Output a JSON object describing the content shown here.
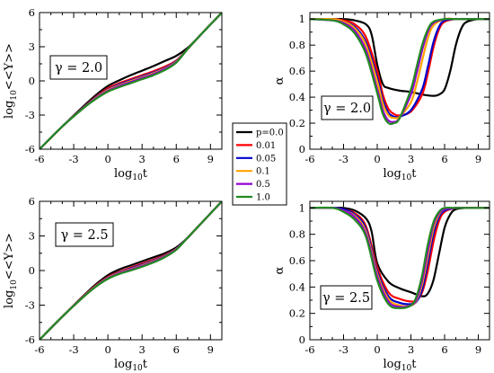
{
  "chart_data": [
    {
      "panel": "top-left",
      "type": "line",
      "xlabel": "log10t",
      "ylabel": "log10<<Y>>",
      "xlim": [
        -6,
        10
      ],
      "ylim": [
        -6,
        6
      ],
      "xticks": [
        "-6",
        "-3",
        "0",
        "3",
        "6",
        "9"
      ],
      "yticks": [
        "-6",
        "-3",
        "0",
        "3",
        "6"
      ],
      "annotation": "γ = 2.0",
      "series": [
        {
          "name": "p=0.0",
          "color": "#000000",
          "x": [
            -6,
            -4,
            -2,
            -1,
            0,
            1,
            2,
            3,
            4,
            5,
            6,
            7,
            8,
            9,
            10
          ],
          "y": [
            -6,
            -4,
            -2.1,
            -1.2,
            -0.45,
            0.05,
            0.5,
            0.9,
            1.3,
            1.75,
            2.2,
            2.9,
            3.9,
            4.95,
            6
          ]
        },
        {
          "name": "0.01",
          "color": "#ff0000",
          "x": [
            -6,
            -4,
            -2,
            -1,
            0,
            1,
            2,
            3,
            4,
            5,
            6,
            7,
            8,
            9,
            10
          ],
          "y": [
            -6,
            -4,
            -2.2,
            -1.35,
            -0.65,
            -0.2,
            0.15,
            0.5,
            0.85,
            1.25,
            1.8,
            2.8,
            3.9,
            4.95,
            6
          ]
        },
        {
          "name": "0.05",
          "color": "#0000cc",
          "x": [
            -6,
            -4,
            -2,
            -1,
            0,
            1,
            2,
            3,
            4,
            5,
            6,
            7,
            8,
            9,
            10
          ],
          "y": [
            -6,
            -4,
            -2.22,
            -1.4,
            -0.75,
            -0.3,
            0.05,
            0.4,
            0.75,
            1.15,
            1.75,
            2.8,
            3.9,
            4.95,
            6
          ]
        },
        {
          "name": "0.1",
          "color": "#ffa500",
          "x": [
            -6,
            -4,
            -2,
            -1,
            0,
            1,
            2,
            3,
            4,
            5,
            6,
            7,
            8,
            9,
            10
          ],
          "y": [
            -6,
            -4,
            -2.24,
            -1.45,
            -0.8,
            -0.38,
            -0.02,
            0.32,
            0.68,
            1.1,
            1.7,
            2.8,
            3.9,
            4.95,
            6
          ]
        },
        {
          "name": "0.5",
          "color": "#9400d3",
          "x": [
            -6,
            -4,
            -2,
            -1,
            0,
            1,
            2,
            3,
            4,
            5,
            6,
            7,
            8,
            9,
            10
          ],
          "y": [
            -6,
            -4,
            -2.26,
            -1.5,
            -0.88,
            -0.45,
            -0.1,
            0.25,
            0.6,
            1.05,
            1.65,
            2.8,
            3.9,
            4.95,
            6
          ]
        },
        {
          "name": "1.0",
          "color": "#228b22",
          "x": [
            -6,
            -4,
            -2,
            -1,
            0,
            1,
            2,
            3,
            4,
            5,
            6,
            7,
            8,
            9,
            10
          ],
          "y": [
            -6,
            -4,
            -2.28,
            -1.55,
            -0.95,
            -0.55,
            -0.2,
            0.15,
            0.5,
            0.95,
            1.6,
            2.8,
            3.9,
            4.95,
            6
          ]
        }
      ]
    },
    {
      "panel": "top-right",
      "type": "line",
      "xlabel": "log10t",
      "ylabel": "α",
      "xlim": [
        -6,
        10
      ],
      "ylim": [
        0,
        1.05
      ],
      "xticks": [
        "-6",
        "-3",
        "0",
        "3",
        "6",
        "9"
      ],
      "yticks": [
        "0",
        "0.2",
        "0.4",
        "0.6",
        "0.8",
        "1"
      ],
      "annotation": "γ = 2.0",
      "series": [
        {
          "name": "p=0.0",
          "color": "#000000",
          "x": [
            -6,
            -4,
            -3,
            -2,
            -1,
            -0.5,
            0,
            0.5,
            1,
            2,
            3,
            4,
            5,
            5.5,
            6,
            6.5,
            7,
            7.5,
            8,
            9,
            10
          ],
          "y": [
            1,
            1,
            1,
            0.99,
            0.96,
            0.88,
            0.65,
            0.5,
            0.47,
            0.45,
            0.44,
            0.42,
            0.41,
            0.42,
            0.46,
            0.6,
            0.8,
            0.93,
            0.98,
            1,
            1
          ]
        },
        {
          "name": "0.01",
          "color": "#ff0000",
          "x": [
            -6,
            -4,
            -3,
            -2,
            -1,
            0,
            0.5,
            1,
            1.5,
            2,
            3,
            4,
            4.5,
            5,
            5.5,
            6,
            7,
            8,
            9,
            10
          ],
          "y": [
            1,
            1,
            0.99,
            0.96,
            0.86,
            0.6,
            0.42,
            0.31,
            0.27,
            0.26,
            0.29,
            0.42,
            0.58,
            0.78,
            0.92,
            0.98,
            1,
            1,
            1,
            1
          ]
        },
        {
          "name": "0.05",
          "color": "#0000cc",
          "x": [
            -6,
            -4,
            -3,
            -2,
            -1,
            0,
            0.5,
            1,
            1.5,
            2,
            3,
            4,
            4.5,
            5,
            5.5,
            6,
            7,
            8,
            9,
            10
          ],
          "y": [
            1,
            1,
            0.98,
            0.94,
            0.82,
            0.55,
            0.38,
            0.28,
            0.25,
            0.25,
            0.3,
            0.46,
            0.63,
            0.82,
            0.94,
            0.99,
            1,
            1,
            1,
            1
          ]
        },
        {
          "name": "0.1",
          "color": "#ffa500",
          "x": [
            -6,
            -4,
            -3,
            -2,
            -1,
            0,
            0.5,
            1,
            1.5,
            2,
            3,
            3.5,
            4,
            4.5,
            5,
            6,
            7,
            8,
            9,
            10
          ],
          "y": [
            1,
            1,
            0.98,
            0.93,
            0.8,
            0.52,
            0.35,
            0.26,
            0.24,
            0.25,
            0.36,
            0.5,
            0.68,
            0.85,
            0.95,
            1,
            1,
            1,
            1,
            1
          ]
        },
        {
          "name": "0.5",
          "color": "#9400d3",
          "x": [
            -6,
            -4,
            -3,
            -2,
            -1,
            0,
            0.5,
            1,
            1.5,
            2,
            3,
            3.5,
            4,
            4.5,
            5,
            6,
            7,
            8,
            9,
            10
          ],
          "y": [
            1,
            0.99,
            0.97,
            0.91,
            0.76,
            0.46,
            0.3,
            0.22,
            0.21,
            0.24,
            0.42,
            0.58,
            0.76,
            0.9,
            0.97,
            1,
            1,
            1,
            1,
            1
          ]
        },
        {
          "name": "1.0",
          "color": "#228b22",
          "x": [
            -6,
            -4,
            -3,
            -2,
            -1,
            0,
            0.5,
            1,
            1.5,
            2,
            3,
            3.5,
            4,
            4.5,
            5,
            6,
            7,
            8,
            9,
            10
          ],
          "y": [
            1,
            0.99,
            0.96,
            0.89,
            0.73,
            0.43,
            0.27,
            0.2,
            0.2,
            0.24,
            0.46,
            0.63,
            0.8,
            0.92,
            0.98,
            1,
            1,
            1,
            1,
            1
          ]
        }
      ]
    },
    {
      "panel": "bottom-left",
      "type": "line",
      "xlabel": "log10t",
      "ylabel": "log10<<Y>>",
      "xlim": [
        -6,
        10
      ],
      "ylim": [
        -6,
        6
      ],
      "xticks": [
        "-6",
        "-3",
        "0",
        "3",
        "6",
        "9"
      ],
      "yticks": [
        "-6",
        "-3",
        "0",
        "3",
        "6"
      ],
      "annotation": "γ = 2.5",
      "series": [
        {
          "name": "p=0.0",
          "color": "#000000",
          "x": [
            -6,
            -4,
            -2,
            -1,
            0,
            1,
            2,
            3,
            4,
            5,
            6,
            7,
            8,
            9,
            10
          ],
          "y": [
            -6,
            -4,
            -2.05,
            -1.15,
            -0.4,
            0.1,
            0.45,
            0.8,
            1.15,
            1.5,
            2.0,
            2.85,
            3.9,
            4.95,
            6
          ]
        },
        {
          "name": "0.01",
          "color": "#ff0000",
          "x": [
            -6,
            -4,
            -2,
            -1,
            0,
            1,
            2,
            3,
            4,
            5,
            6,
            7,
            8,
            9,
            10
          ],
          "y": [
            -6,
            -4,
            -2.1,
            -1.25,
            -0.55,
            -0.1,
            0.25,
            0.6,
            0.95,
            1.35,
            1.9,
            2.85,
            3.9,
            4.95,
            6
          ]
        },
        {
          "name": "0.05",
          "color": "#0000cc",
          "x": [
            -6,
            -4,
            -2,
            -1,
            0,
            1,
            2,
            3,
            4,
            5,
            6,
            7,
            8,
            9,
            10
          ],
          "y": [
            -6,
            -4,
            -2.12,
            -1.28,
            -0.6,
            -0.15,
            0.18,
            0.52,
            0.88,
            1.3,
            1.88,
            2.85,
            3.9,
            4.95,
            6
          ]
        },
        {
          "name": "0.1",
          "color": "#ffa500",
          "x": [
            -6,
            -4,
            -2,
            -1,
            0,
            1,
            2,
            3,
            4,
            5,
            6,
            7,
            8,
            9,
            10
          ],
          "y": [
            -6,
            -4,
            -2.13,
            -1.3,
            -0.63,
            -0.2,
            0.12,
            0.46,
            0.83,
            1.26,
            1.86,
            2.85,
            3.9,
            4.95,
            6
          ]
        },
        {
          "name": "0.5",
          "color": "#9400d3",
          "x": [
            -6,
            -4,
            -2,
            -1,
            0,
            1,
            2,
            3,
            4,
            5,
            6,
            7,
            8,
            9,
            10
          ],
          "y": [
            -6,
            -4,
            -2.15,
            -1.33,
            -0.67,
            -0.25,
            0.07,
            0.4,
            0.77,
            1.22,
            1.83,
            2.85,
            3.9,
            4.95,
            6
          ]
        },
        {
          "name": "1.0",
          "color": "#228b22",
          "x": [
            -6,
            -4,
            -2,
            -1,
            0,
            1,
            2,
            3,
            4,
            5,
            6,
            7,
            8,
            9,
            10
          ],
          "y": [
            -6,
            -4,
            -2.17,
            -1.36,
            -0.72,
            -0.3,
            0.0,
            0.33,
            0.7,
            1.16,
            1.8,
            2.85,
            3.9,
            4.95,
            6
          ]
        }
      ]
    },
    {
      "panel": "bottom-right",
      "type": "line",
      "xlabel": "log10t",
      "ylabel": "α",
      "xlim": [
        -6,
        10
      ],
      "ylim": [
        0,
        1.05
      ],
      "xticks": [
        "-6",
        "-3",
        "0",
        "3",
        "6",
        "9"
      ],
      "yticks": [
        "0",
        "0.2",
        "0.4",
        "0.6",
        "0.8",
        "1"
      ],
      "annotation": "γ = 2.5",
      "series": [
        {
          "name": "p=0.0",
          "color": "#000000",
          "x": [
            -6,
            -4,
            -3,
            -2,
            -1,
            -0.5,
            0,
            1,
            2,
            3,
            4,
            4.5,
            5,
            5.5,
            6,
            6.5,
            7,
            8,
            9,
            10
          ],
          "y": [
            1,
            1,
            1,
            0.98,
            0.92,
            0.82,
            0.58,
            0.44,
            0.39,
            0.36,
            0.33,
            0.35,
            0.45,
            0.65,
            0.85,
            0.95,
            0.99,
            1,
            1,
            1
          ]
        },
        {
          "name": "0.01",
          "color": "#ff0000",
          "x": [
            -6,
            -4,
            -3,
            -2,
            -1,
            0,
            1,
            2,
            3,
            3.5,
            4,
            4.5,
            5,
            5.5,
            6,
            7,
            8,
            9,
            10
          ],
          "y": [
            1,
            1,
            0.99,
            0.96,
            0.86,
            0.55,
            0.36,
            0.31,
            0.29,
            0.3,
            0.36,
            0.52,
            0.74,
            0.9,
            0.97,
            1,
            1,
            1,
            1
          ]
        },
        {
          "name": "0.05",
          "color": "#0000cc",
          "x": [
            -6,
            -4,
            -3,
            -2,
            -1,
            0,
            1,
            2,
            3,
            3.5,
            4,
            4.5,
            5,
            5.5,
            6,
            7,
            8,
            9,
            10
          ],
          "y": [
            1,
            1,
            0.99,
            0.95,
            0.84,
            0.52,
            0.33,
            0.28,
            0.27,
            0.29,
            0.38,
            0.58,
            0.8,
            0.93,
            0.98,
            1,
            1,
            1,
            1
          ]
        },
        {
          "name": "0.1",
          "color": "#ffa500",
          "x": [
            -6,
            -4,
            -3,
            -2,
            -1,
            0,
            1,
            2,
            3,
            3.5,
            4,
            4.5,
            5,
            5.5,
            6,
            7,
            8,
            9,
            10
          ],
          "y": [
            1,
            1,
            0.98,
            0.94,
            0.82,
            0.5,
            0.31,
            0.26,
            0.26,
            0.3,
            0.42,
            0.63,
            0.84,
            0.95,
            0.99,
            1,
            1,
            1,
            1
          ]
        },
        {
          "name": "0.5",
          "color": "#9400d3",
          "x": [
            -6,
            -4,
            -3,
            -2,
            -1,
            0,
            1,
            2,
            3,
            3.5,
            4,
            4.5,
            5,
            5.5,
            6,
            7,
            8,
            9,
            10
          ],
          "y": [
            1,
            1,
            0.98,
            0.93,
            0.8,
            0.48,
            0.29,
            0.25,
            0.26,
            0.31,
            0.45,
            0.67,
            0.87,
            0.96,
            0.99,
            1,
            1,
            1,
            1
          ]
        },
        {
          "name": "1.0",
          "color": "#228b22",
          "x": [
            -6,
            -4,
            -3,
            -2,
            -1,
            0,
            1,
            2,
            3,
            3.5,
            4,
            4.5,
            5,
            5.5,
            6,
            7,
            8,
            9,
            10
          ],
          "y": [
            1,
            1,
            0.97,
            0.91,
            0.78,
            0.45,
            0.27,
            0.24,
            0.26,
            0.33,
            0.49,
            0.72,
            0.89,
            0.97,
            1,
            1,
            1,
            1,
            1
          ]
        }
      ]
    }
  ],
  "legend": {
    "entries": [
      {
        "label": "p=0.0",
        "color": "#000000"
      },
      {
        "label": "0.01",
        "color": "#ff0000"
      },
      {
        "label": "0.05",
        "color": "#0000cc"
      },
      {
        "label": "0.1",
        "color": "#ffa500"
      },
      {
        "label": "0.5",
        "color": "#9400d3"
      },
      {
        "label": "1.0",
        "color": "#228b22"
      }
    ]
  }
}
